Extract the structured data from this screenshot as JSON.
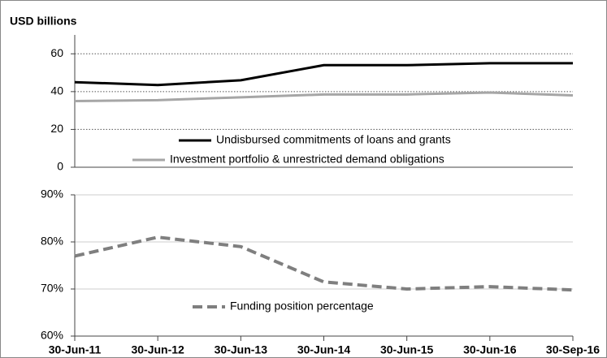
{
  "chart_data": {
    "categories": [
      "30-Jun-11",
      "30-Jun-12",
      "30-Jun-13",
      "30-Jun-14",
      "30-Jun-15",
      "30-Jun-16",
      "30-Sep-16"
    ],
    "panels": [
      {
        "type": "line",
        "ylabel": "USD billions",
        "ylim": [
          0,
          70
        ],
        "yticks": [
          0,
          20,
          40,
          60
        ],
        "grid": true,
        "series": [
          {
            "name": "Undisbursed commitments of loans and grants",
            "color": "#000000",
            "dash": false,
            "values": [
              45,
              43.5,
              46,
              54,
              54,
              55,
              55
            ]
          },
          {
            "name": "Investment portfolio & unrestricted demand obligations",
            "color": "#a6a6a6",
            "dash": false,
            "values": [
              35,
              35.5,
              37,
              38.5,
              38.5,
              39.5,
              38
            ]
          }
        ]
      },
      {
        "type": "line",
        "ylim": [
          60,
          90
        ],
        "yticks": [
          {
            "value": 60,
            "label": "60%"
          },
          {
            "value": 70,
            "label": "70%"
          },
          {
            "value": 80,
            "label": "80%"
          },
          {
            "value": 90,
            "label": "90%"
          }
        ],
        "grid": true,
        "series": [
          {
            "name": "Funding position percentage",
            "color": "#7f7f7f",
            "dash": true,
            "values": [
              77,
              81,
              79,
              71.5,
              70,
              70.5,
              69.8
            ]
          }
        ]
      }
    ]
  }
}
